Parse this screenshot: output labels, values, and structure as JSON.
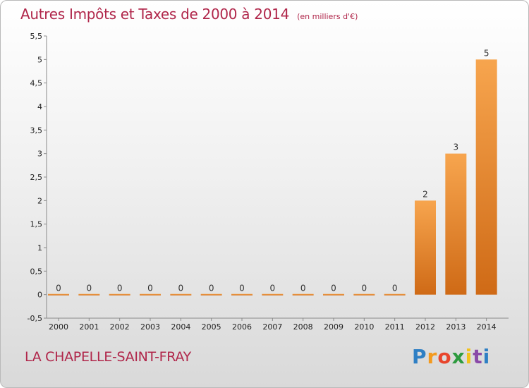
{
  "header": {
    "title": "Autres Impôts et Taxes de 2000 à 2014",
    "subtitle": "(en milliers d'€)"
  },
  "footer": {
    "commune": "LA CHAPELLE-SAINT-FRAY",
    "logo_letters": [
      "P",
      "r",
      "o",
      "x",
      "i",
      "t",
      "i"
    ],
    "logo_colors": [
      "#2e7fc4",
      "#f39a1e",
      "#e8452c",
      "#2e9b3f",
      "#f2c21b",
      "#8a49a8",
      "#2e7fc4"
    ]
  },
  "chart_data": {
    "type": "bar",
    "title": "Autres Impôts et Taxes de 2000 à 2014",
    "subtitle": "(en milliers d'€)",
    "categories": [
      "2000",
      "2001",
      "2002",
      "2003",
      "2004",
      "2005",
      "2006",
      "2007",
      "2008",
      "2009",
      "2010",
      "2011",
      "2012",
      "2013",
      "2014"
    ],
    "values": [
      0,
      0,
      0,
      0,
      0,
      0,
      0,
      0,
      0,
      0,
      0,
      0,
      2,
      3,
      5
    ],
    "value_labels": [
      "0",
      "0",
      "0",
      "0",
      "0",
      "0",
      "0",
      "0",
      "0",
      "0",
      "0",
      "0",
      "2",
      "3",
      "5"
    ],
    "ylim": [
      -0.5,
      5.5
    ],
    "yticks": [
      -0.5,
      0,
      0.5,
      1,
      1.5,
      2,
      2.5,
      3,
      3.5,
      4,
      4.5,
      5,
      5.5
    ],
    "ytick_labels": [
      "-0,5",
      "0",
      "0,5",
      "1",
      "1,5",
      "2",
      "2,5",
      "3",
      "3,5",
      "4",
      "4,5",
      "5",
      "5,5"
    ],
    "grid": false,
    "bar_color": "#e8862e"
  }
}
